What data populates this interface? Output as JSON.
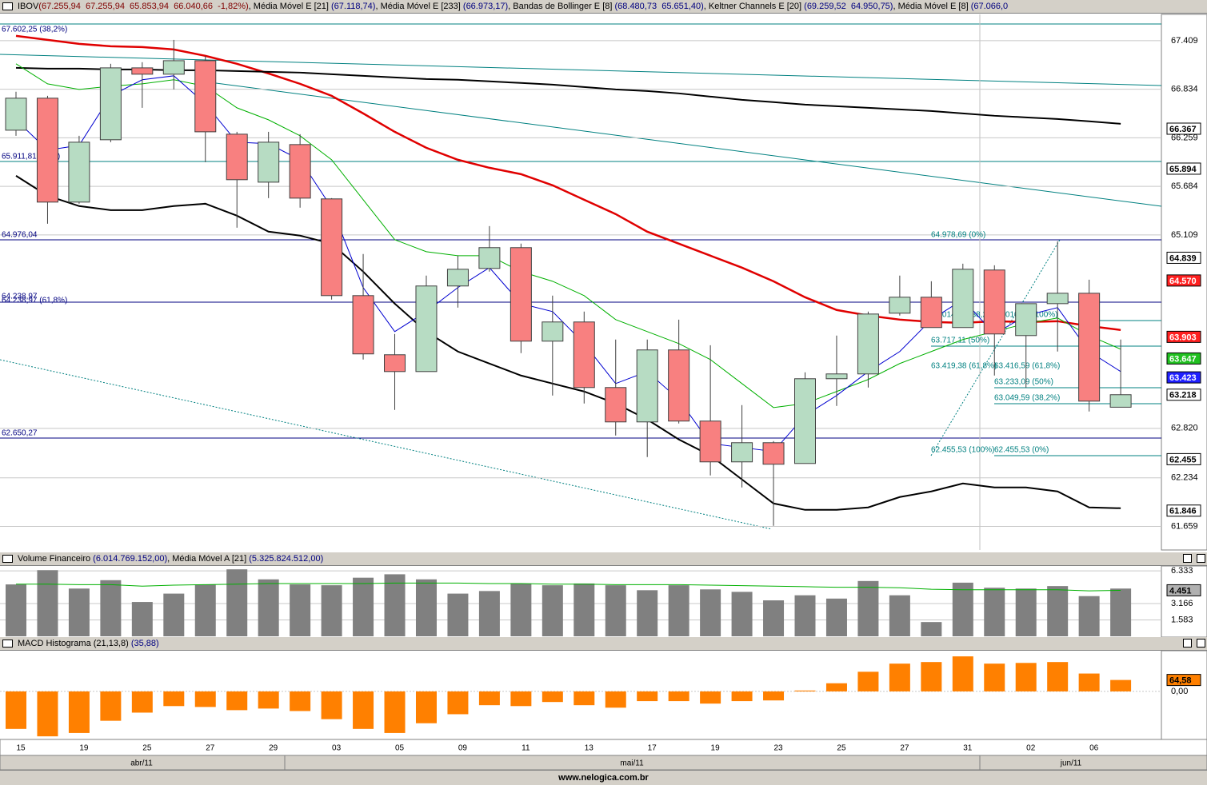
{
  "header": [
    {
      "text": "IBOV",
      "color": "#000000"
    },
    {
      "text": "(67.255,94  67.255,94  65.853,94  66.040,66  -1,82%)",
      "color": "#800000"
    },
    {
      "text": ", Média Móvel E [21] ",
      "color": "#000000"
    },
    {
      "text": "(67.118,74)",
      "color": "#000080"
    },
    {
      "text": ", Média Móvel E [233] ",
      "color": "#000000"
    },
    {
      "text": "(66.973,17)",
      "color": "#000080"
    },
    {
      "text": ", Bandas de Bollinger E [8] ",
      "color": "#000000"
    },
    {
      "text": "(68.480,73  65.651,40)",
      "color": "#000080"
    },
    {
      "text": ", Keltner Channels E [20] ",
      "color": "#000000"
    },
    {
      "text": "(69.259,52  64.950,75)",
      "color": "#000080"
    },
    {
      "text": ", Média Móvel E [8] ",
      "color": "#000000"
    },
    {
      "text": "(67.066,0",
      "color": "#000080"
    }
  ],
  "volume_header": [
    {
      "text": "Volume Financeiro ",
      "color": "#000000"
    },
    {
      "text": "(6.014.769.152,00)",
      "color": "#000080"
    },
    {
      "text": ", Média Móvel A [21] ",
      "color": "#000000"
    },
    {
      "text": "(5.325.824.512,00)",
      "color": "#000080"
    }
  ],
  "macd_header": [
    {
      "text": "MACD Histograma (21,13,8) ",
      "color": "#000000"
    },
    {
      "text": "(35,88)",
      "color": "#000080"
    }
  ],
  "months": [
    "abr/11",
    "mai/11",
    "jun/11"
  ],
  "footer": "www.nelogica.com.br",
  "chart_data": [
    {
      "type": "candlestick",
      "categories": [
        "15",
        null,
        "19",
        null,
        "25",
        null,
        "27",
        null,
        "29",
        null,
        "03",
        null,
        "05",
        null,
        "09",
        null,
        "11",
        null,
        "13",
        null,
        "17",
        null,
        "19",
        null,
        "23",
        null,
        "25",
        null,
        "27",
        null,
        "31",
        null,
        "02",
        null,
        "06",
        null
      ],
      "open": [
        66349,
        66728,
        65498,
        66236,
        67087,
        67012,
        67172,
        66302,
        65734,
        66179,
        65536,
        64391,
        63691,
        63492,
        64505,
        64713,
        64959,
        63852,
        64079,
        63303,
        62896,
        63748,
        62906,
        62423,
        62650,
        62404,
        63407,
        63464,
        64183,
        64372,
        64013,
        64694,
        63918,
        64296,
        64419,
        63070
      ],
      "high": [
        66804,
        66756,
        66283,
        67135,
        67154,
        67418,
        67229,
        66330,
        66330,
        66302,
        65545,
        64883,
        63937,
        64628,
        64864,
        65214,
        65006,
        64391,
        64202,
        63871,
        63871,
        64107,
        63804,
        63095,
        62669,
        63483,
        63918,
        64202,
        64628,
        64561,
        64769,
        64750,
        64296,
        65034,
        64580,
        63871
      ],
      "low": [
        66283,
        65242,
        65479,
        66207,
        66614,
        66832,
        65971,
        65195,
        65545,
        65432,
        64344,
        63634,
        63038,
        63492,
        64249,
        64675,
        63710,
        63208,
        63114,
        62735,
        62480,
        62877,
        62262,
        62120,
        61666,
        62404,
        63085,
        63303,
        64155,
        64013,
        64013,
        63445,
        63303,
        63729,
        63019,
        63070
      ],
      "close": [
        66728,
        65498,
        66207,
        67087,
        67012,
        67172,
        66330,
        65763,
        66207,
        65545,
        64391,
        63701,
        63492,
        64505,
        64703,
        64959,
        63852,
        64079,
        63303,
        62896,
        63748,
        62906,
        62423,
        62650,
        62395,
        63407,
        63464,
        64173,
        64372,
        64013,
        64703,
        63937,
        64296,
        64419,
        63142,
        63218
      ],
      "up_color": "#b7dcc3",
      "down_color": "#f88080",
      "series": [
        {
          "color": "#e00000",
          "width": 2.5,
          "values": [
            67466,
            67418,
            67371,
            67343,
            67333,
            67305,
            67229,
            67135,
            67021,
            66898,
            66756,
            66548,
            66330,
            66141,
            65999,
            65904,
            65829,
            65697,
            65526,
            65356,
            65148,
            65006,
            64864,
            64722,
            64561,
            64372,
            64221,
            64155,
            64107,
            64079,
            64069,
            64088,
            64079,
            64088,
            64031,
            63984
          ]
        },
        {
          "color": "#000000",
          "width": 2,
          "values": [
            67087,
            67078,
            67078,
            67068,
            67068,
            67059,
            67059,
            67049,
            67040,
            67031,
            67012,
            66993,
            66974,
            66955,
            66946,
            66927,
            66908,
            66889,
            66860,
            66832,
            66813,
            66785,
            66747,
            66709,
            66681,
            66652,
            66633,
            66614,
            66595,
            66576,
            66548,
            66520,
            66501,
            66482,
            66454,
            66425
          ]
        },
        {
          "color": "#000000",
          "width": 2,
          "values": [
            65810,
            65574,
            65451,
            65403,
            65403,
            65451,
            65479,
            65337,
            65148,
            65101,
            65006,
            64675,
            64296,
            63965,
            63729,
            63587,
            63445,
            63350,
            63256,
            63114,
            62925,
            62688,
            62499,
            62215,
            61931,
            61855,
            61855,
            61884,
            62007,
            62073,
            62168,
            62120,
            62120,
            62073,
            61884,
            61874
          ]
        },
        {
          "color": "#00b000",
          "width": 1,
          "values": [
            67135,
            66898,
            66832,
            66870,
            66898,
            66946,
            66870,
            66614,
            66472,
            66283,
            65999,
            65526,
            65053,
            64911,
            64864,
            64864,
            64675,
            64561,
            64391,
            64107,
            63965,
            63823,
            63634,
            63350,
            63066,
            63114,
            63256,
            63398,
            63587,
            63729,
            63871,
            63965,
            64060,
            64126,
            63918,
            63757
          ]
        },
        {
          "color": "#0000d0",
          "width": 1,
          "values": [
            66472,
            66113,
            66170,
            66756,
            66946,
            66993,
            66662,
            66207,
            66189,
            65999,
            65432,
            64486,
            63965,
            64202,
            64486,
            64722,
            64296,
            64202,
            63823,
            63350,
            63492,
            63161,
            62641,
            62593,
            62546,
            62972,
            63208,
            63492,
            63729,
            64107,
            64344,
            63937,
            64155,
            64249,
            63729,
            63492
          ]
        }
      ],
      "ylim": [
        61380,
        67720
      ],
      "yticks": [
        {
          "value": 61659,
          "label": "61.659"
        },
        {
          "value": 62234,
          "label": "62.234"
        },
        {
          "value": 62820,
          "label": "62.820"
        },
        {
          "value": 65109,
          "label": "65.109"
        },
        {
          "value": 65684,
          "label": "65.684"
        },
        {
          "value": 66259,
          "label": "66.259"
        },
        {
          "value": 66834,
          "label": "66.834"
        },
        {
          "value": 67409,
          "label": "67.409"
        }
      ],
      "grid": true,
      "price_tags": [
        {
          "value": 66367,
          "label": "66.367",
          "bg": "#ffffff",
          "fg": "#000000"
        },
        {
          "value": 65894,
          "label": "65.894",
          "bg": "#ffffff",
          "fg": "#000000"
        },
        {
          "value": 64839,
          "label": "64.839",
          "bg": "#ffffff",
          "fg": "#000000"
        },
        {
          "value": 64570,
          "label": "64.570",
          "bg": "#ff2020",
          "fg": "#ffffff"
        },
        {
          "value": 63903,
          "label": "63.903",
          "bg": "#ff2020",
          "fg": "#ffffff"
        },
        {
          "value": 63647,
          "label": "63.647",
          "bg": "#20c020",
          "fg": "#ffffff"
        },
        {
          "value": 63423,
          "label": "63.423",
          "bg": "#2020ff",
          "fg": "#ffffff"
        },
        {
          "value": 63218,
          "label": "63.218",
          "bg": "#ffffff",
          "fg": "#000000"
        },
        {
          "value": 62455,
          "label": "62.455",
          "bg": "#ffffff",
          "fg": "#000000"
        },
        {
          "value": 61846,
          "label": "61.846",
          "bg": "#ffffff",
          "fg": "#000000"
        }
      ],
      "annotations": [
        "67.602,25 (38,2%)",
        "65.911,81 (50%)",
        "64.976,04",
        "64.238,97",
        "64.238,97 (61,8%)",
        "62.650,27",
        "64.978,69 (0%)",
        "64.014,84 (38,2%)",
        "64.010,64 (100%)",
        "63.717,11 (50%)",
        "63.419,38 (61,8%)",
        "63.416,59 (61,8%)",
        "63.233,09 (50%)",
        "63.049,59 (38,2%)",
        "62.455,53 (100%)",
        "62.455,53 (0%)"
      ]
    },
    {
      "type": "bar",
      "color": "#808080",
      "values": [
        5.02,
        6.4,
        4.62,
        5.43,
        3.32,
        4.13,
        5.02,
        6.48,
        5.51,
        5.02,
        4.94,
        5.67,
        6.0,
        5.51,
        4.13,
        4.38,
        5.11,
        4.94,
        5.11,
        4.94,
        4.46,
        4.94,
        4.54,
        4.3,
        3.48,
        3.97,
        3.65,
        5.35,
        3.97,
        1.38,
        5.19,
        4.7,
        4.62,
        4.86,
        3.89,
        4.62
      ],
      "series": [
        {
          "color": "#00b000",
          "values": [
            5.05,
            5.05,
            5.0,
            5.0,
            4.85,
            4.95,
            5.0,
            5.05,
            5.1,
            5.1,
            5.1,
            5.1,
            5.15,
            5.15,
            5.15,
            5.1,
            5.1,
            5.05,
            5.05,
            5.0,
            5.0,
            5.0,
            4.95,
            4.9,
            4.85,
            4.8,
            4.75,
            4.75,
            4.7,
            4.55,
            4.5,
            4.5,
            4.5,
            4.5,
            4.4,
            4.45
          ]
        }
      ],
      "ylim": [
        0,
        6.65
      ],
      "yticks": [
        1.583,
        3.166,
        6.333
      ],
      "price_tags": [
        {
          "value": 4.451,
          "label": "4.451",
          "bg": "#b0b0b0",
          "fg": "#000000"
        }
      ]
    },
    {
      "type": "bar",
      "color": "#ff8000",
      "values": [
        -212,
        -254,
        -235,
        -166,
        -120,
        -83,
        -88,
        -106,
        -97,
        -111,
        -157,
        -212,
        -235,
        -180,
        -129,
        -78,
        -83,
        -60,
        -78,
        -92,
        -55,
        -55,
        -69,
        -55,
        -51,
        5,
        46,
        111,
        157,
        166,
        198,
        157,
        161,
        166,
        101,
        64.58
      ],
      "ylim": [
        -267,
        221
      ],
      "yticks": [
        {
          "value": 0,
          "label": "0,00"
        }
      ],
      "price_tags": [
        {
          "value": 64.58,
          "label": "64,58",
          "bg": "#ff8000",
          "fg": "#000000"
        }
      ]
    }
  ]
}
